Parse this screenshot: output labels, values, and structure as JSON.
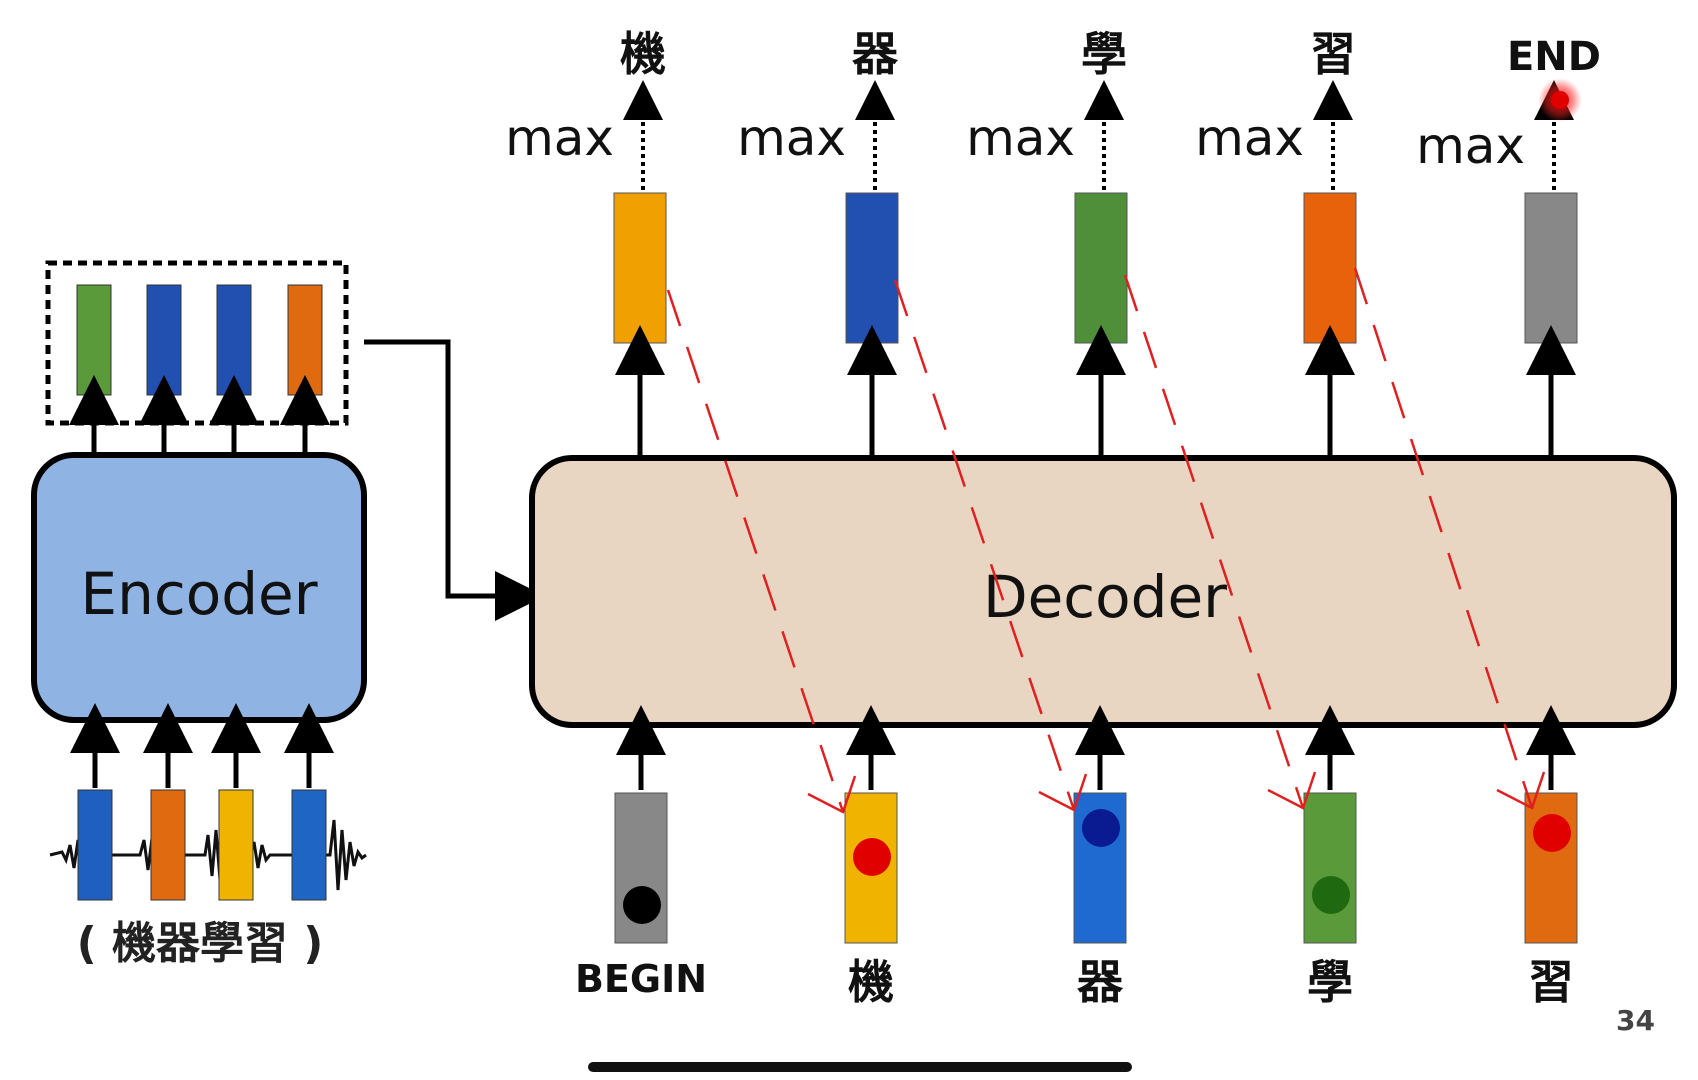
{
  "encoder": {
    "label": "Encoder",
    "input_caption": "( 機器學習 )",
    "input_colors": [
      "#1f5fc0",
      "#e06a10",
      "#f0b400",
      "#1f66c4"
    ],
    "output_colors": [
      "#5a9a3a",
      "#2250b0",
      "#2250b0",
      "#e06a10"
    ]
  },
  "decoder": {
    "label": "Decoder",
    "inputs": [
      {
        "text": "BEGIN",
        "color": "#888888",
        "dot": "#000000"
      },
      {
        "text": "機",
        "color": "#f0b400",
        "dot": "#e00000"
      },
      {
        "text": "器",
        "color": "#1f6ad0",
        "dot": "#0a1a90"
      },
      {
        "text": "學",
        "color": "#5a9a3a",
        "dot": "#1f6a10"
      },
      {
        "text": "習",
        "color": "#e06a10",
        "dot": "#e00000"
      }
    ],
    "outputs": [
      {
        "text": "機",
        "max": "max",
        "color": "#f0a000"
      },
      {
        "text": "器",
        "max": "max",
        "color": "#2250b0"
      },
      {
        "text": "學",
        "max": "max",
        "color": "#4f8f3a"
      },
      {
        "text": "習",
        "max": "max",
        "color": "#e8620c"
      },
      {
        "text": "END",
        "max": "max",
        "color": "#888888"
      }
    ]
  },
  "page_number": "34",
  "colors": {
    "encoder_fill": "#8fb4e4",
    "decoder_fill": "#e8d6c2",
    "annotation": "#e02020"
  }
}
